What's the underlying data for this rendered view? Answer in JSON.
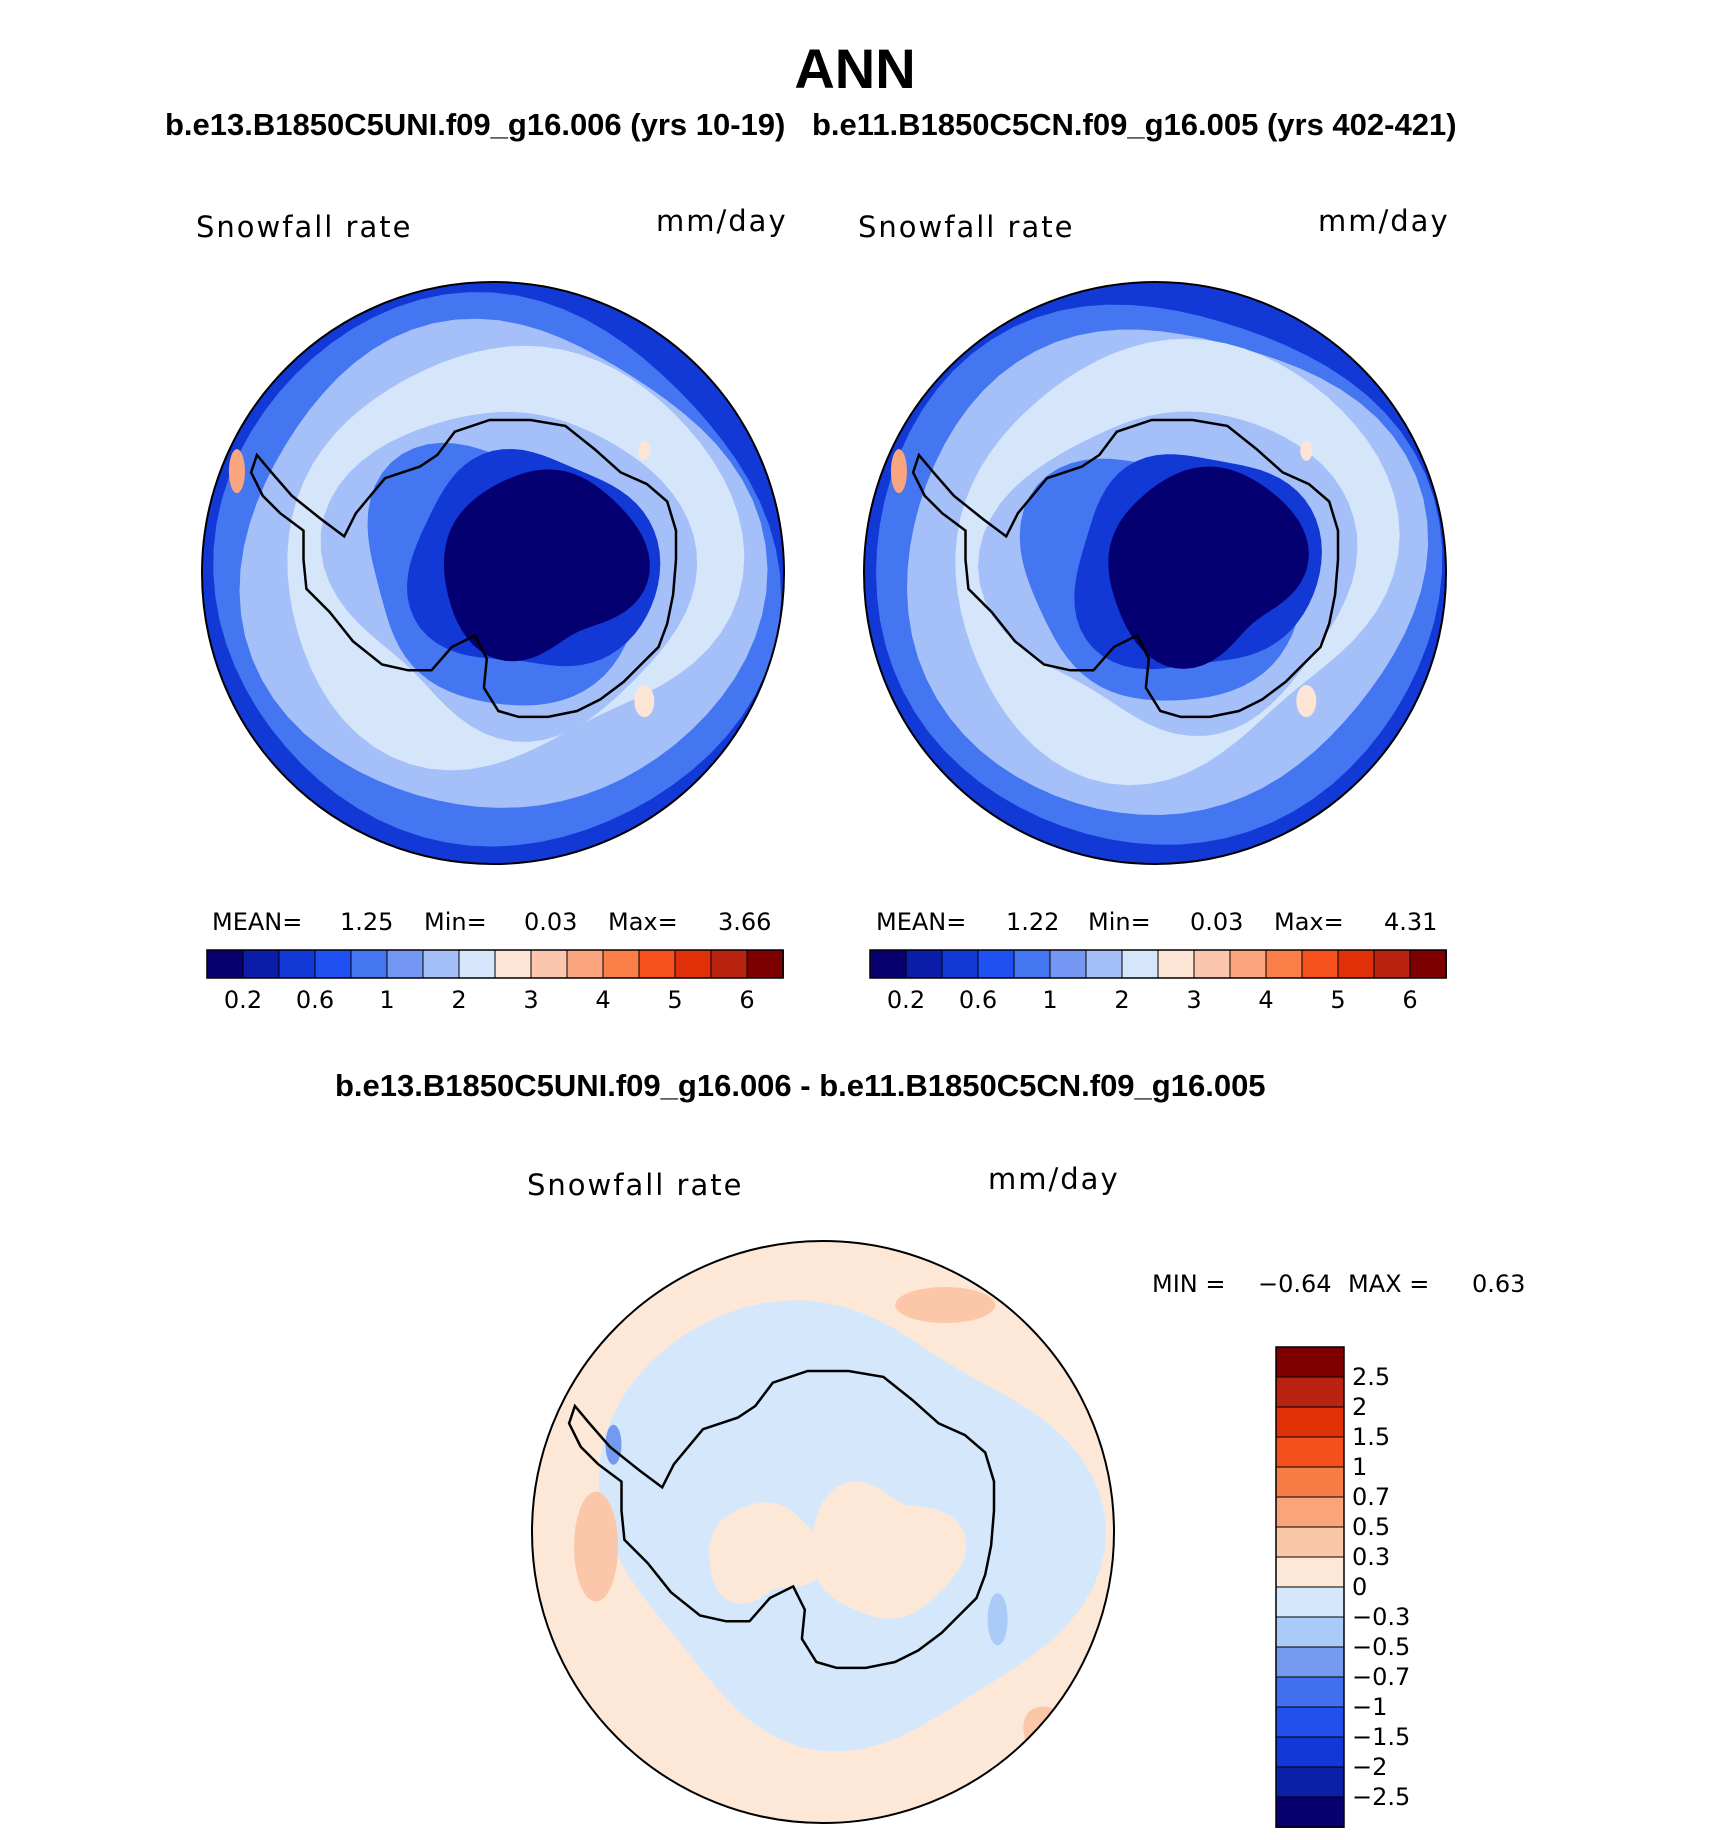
{
  "page": {
    "title": "ANN",
    "case_left": "b.e13.B1850C5UNI.f09_g16.006 (yrs 10-19)",
    "case_right": "b.e11.B1850C5CN.f09_g16.005 (yrs 402-421)",
    "diff_title": "b.e13.B1850C5UNI.f09_g16.006 - b.e11.B1850C5CN.f09_g16.005"
  },
  "colors": {
    "abs_scale": [
      "#08006e",
      "#0a1ca8",
      "#1238d6",
      "#1f50f2",
      "#4476f2",
      "#7497f4",
      "#a5bff8",
      "#d5e6fb",
      "#fde5d6",
      "#fcc6ae",
      "#fba57f",
      "#f97e48",
      "#f6501c",
      "#e03008",
      "#b82410",
      "#7c0000"
    ],
    "diff_scale": [
      "#080070",
      "#0a20a8",
      "#1238d8",
      "#2250ef",
      "#4370ef",
      "#739aef",
      "#aacaf8",
      "#d5e8fb",
      "#fde8d8",
      "#fbc7a8",
      "#f9a47a",
      "#f77d46",
      "#f4501b",
      "#df3006",
      "#b82410",
      "#7e0000"
    ],
    "coastline": "#000000",
    "ice_interior": "#050072",
    "ocean_main": "#a8c6f8"
  },
  "chart_data": [
    {
      "type": "heatmap",
      "title": "Snowfall rate",
      "units": "mm/day",
      "stats": {
        "mean_label": "MEAN=",
        "mean": "1.25",
        "min_label": "Min=",
        "min": "0.03",
        "max_label": "Max=",
        "max": "3.66"
      },
      "colorbar_labels": [
        "0.2",
        "0.6",
        "1",
        "2",
        "3",
        "4",
        "5",
        "6"
      ],
      "levels": [
        0.2,
        0.4,
        0.6,
        0.8,
        1,
        1.5,
        2,
        2.5,
        3,
        3.5,
        4,
        4.5,
        5,
        5.5,
        6
      ]
    },
    {
      "type": "heatmap",
      "title": "Snowfall rate",
      "units": "mm/day",
      "stats": {
        "mean_label": "MEAN=",
        "mean": "1.22",
        "min_label": "Min=",
        "min": "0.03",
        "max_label": "Max=",
        "max": "4.31"
      },
      "colorbar_labels": [
        "0.2",
        "0.6",
        "1",
        "2",
        "3",
        "4",
        "5",
        "6"
      ],
      "levels": [
        0.2,
        0.4,
        0.6,
        0.8,
        1,
        1.5,
        2,
        2.5,
        3,
        3.5,
        4,
        4.5,
        5,
        5.5,
        6
      ]
    },
    {
      "type": "heatmap",
      "title": "Snowfall rate",
      "units": "mm/day",
      "stats": {
        "min_label": "MIN =",
        "min": "−0.64",
        "max_label": "MAX =",
        "max": "0.63"
      },
      "colorbar_labels": [
        "2.5",
        "2",
        "1.5",
        "1",
        "0.7",
        "0.5",
        "0.3",
        "0",
        "−0.3",
        "−0.5",
        "−0.7",
        "−1",
        "−1.5",
        "−2",
        "−2.5"
      ],
      "levels": [
        -2.5,
        -2,
        -1.5,
        -1,
        -0.7,
        -0.5,
        -0.3,
        0,
        0.3,
        0.5,
        0.7,
        1,
        1.5,
        2,
        2.5
      ]
    }
  ]
}
